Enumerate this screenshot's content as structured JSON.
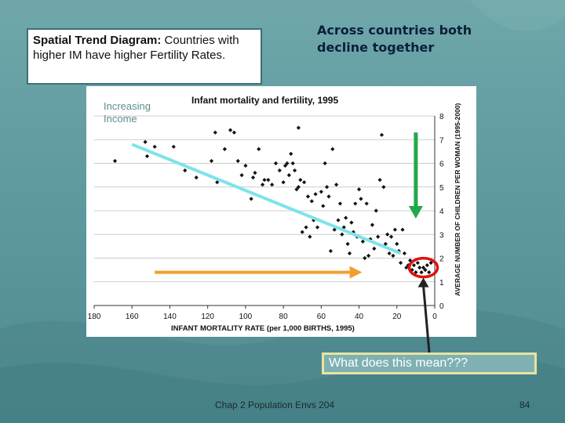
{
  "slide": {
    "callout_bold": "Spatial Trend Diagram:",
    "callout_rest": " Countries with higher IM have higher Fertility Rates.",
    "right_heading": "Across countries both decline together",
    "increasing_label": "Increasing Income",
    "question": "What does this mean???",
    "footer": "Chap 2 Population Envs 204",
    "page_number": "84"
  },
  "chart_data": {
    "type": "scatter",
    "title": "Infant mortality and fertility, 1995",
    "xlabel": "INFANT MORTALITY RATE (per 1,000 BIRTHS, 1995)",
    "ylabel": "AVERAGE NUMBER OF CHILDREN PER WOMAN (1995-2000)",
    "x_ticks": [
      "180",
      "160",
      "140",
      "120",
      "100",
      "80",
      "60",
      "40",
      "20",
      "0"
    ],
    "y_ticks": [
      "0",
      "1",
      "2",
      "3",
      "4",
      "5",
      "6",
      "7",
      "8"
    ],
    "xlim": [
      180,
      0
    ],
    "ylim": [
      0,
      8
    ],
    "x_reversed": true,
    "grid": "horizontal",
    "points": [
      [
        169,
        6.1
      ],
      [
        153,
        6.9
      ],
      [
        152,
        6.3
      ],
      [
        148,
        6.7
      ],
      [
        138,
        6.7
      ],
      [
        126,
        5.4
      ],
      [
        118,
        6.1
      ],
      [
        115,
        5.2
      ],
      [
        111,
        6.6
      ],
      [
        108,
        7.4
      ],
      [
        106,
        7.3
      ],
      [
        104,
        6.1
      ],
      [
        102,
        5.5
      ],
      [
        100,
        5.9
      ],
      [
        97,
        4.5
      ],
      [
        96,
        5.4
      ],
      [
        95,
        5.6
      ],
      [
        93,
        6.6
      ],
      [
        91,
        5.1
      ],
      [
        90,
        5.3
      ],
      [
        88,
        5.3
      ],
      [
        86,
        5.1
      ],
      [
        84,
        6.0
      ],
      [
        82,
        5.7
      ],
      [
        80,
        5.2
      ],
      [
        79,
        5.9
      ],
      [
        78,
        6.0
      ],
      [
        77,
        5.5
      ],
      [
        76,
        6.4
      ],
      [
        75,
        6.0
      ],
      [
        74,
        5.7
      ],
      [
        73,
        4.9
      ],
      [
        72,
        5.0
      ],
      [
        71,
        5.3
      ],
      [
        70,
        3.1
      ],
      [
        69,
        5.2
      ],
      [
        68,
        3.3
      ],
      [
        67,
        4.6
      ],
      [
        66,
        2.9
      ],
      [
        65,
        4.4
      ],
      [
        64,
        3.6
      ],
      [
        63,
        4.7
      ],
      [
        62,
        3.3
      ],
      [
        60,
        4.8
      ],
      [
        59,
        4.2
      ],
      [
        58,
        6.0
      ],
      [
        57,
        5.0
      ],
      [
        56,
        4.6
      ],
      [
        55,
        2.3
      ],
      [
        54,
        6.6
      ],
      [
        53,
        3.2
      ],
      [
        52,
        5.1
      ],
      [
        51,
        3.6
      ],
      [
        50,
        4.3
      ],
      [
        49,
        3.0
      ],
      [
        48,
        3.3
      ],
      [
        47,
        3.7
      ],
      [
        46,
        2.6
      ],
      [
        45,
        2.2
      ],
      [
        44,
        3.5
      ],
      [
        43,
        3.1
      ],
      [
        42,
        4.3
      ],
      [
        41,
        2.9
      ],
      [
        40,
        4.9
      ],
      [
        39,
        4.5
      ],
      [
        38,
        2.7
      ],
      [
        37,
        2.0
      ],
      [
        36,
        4.3
      ],
      [
        35,
        2.1
      ],
      [
        34,
        2.8
      ],
      [
        33,
        3.4
      ],
      [
        32,
        2.4
      ],
      [
        31,
        4.0
      ],
      [
        30,
        2.9
      ],
      [
        29,
        5.3
      ],
      [
        28,
        7.2
      ],
      [
        27,
        5.0
      ],
      [
        26,
        2.6
      ],
      [
        25,
        3.0
      ],
      [
        24,
        2.2
      ],
      [
        23,
        2.9
      ],
      [
        22,
        2.1
      ],
      [
        21,
        3.2
      ],
      [
        20,
        2.6
      ],
      [
        19,
        2.3
      ],
      [
        18,
        1.8
      ],
      [
        17,
        3.2
      ],
      [
        16,
        2.2
      ],
      [
        15,
        1.6
      ],
      [
        14,
        1.7
      ],
      [
        13,
        1.9
      ],
      [
        12,
        1.5
      ],
      [
        11,
        1.7
      ],
      [
        10,
        1.4
      ],
      [
        9,
        1.8
      ],
      [
        8,
        1.6
      ],
      [
        7,
        1.4
      ],
      [
        6,
        1.6
      ],
      [
        5,
        1.5
      ],
      [
        4,
        1.7
      ],
      [
        3,
        1.4
      ],
      [
        2,
        1.8
      ],
      [
        72,
        7.5
      ],
      [
        116,
        7.3
      ],
      [
        132,
        5.7
      ]
    ]
  },
  "annotations": {
    "cyan_line": [
      [
        160,
        6.8
      ],
      [
        18,
        2.2
      ]
    ],
    "green_arrow": [
      [
        10,
        7.3
      ],
      [
        10,
        3.8
      ]
    ],
    "orange_arrow": [
      [
        148,
        1.4
      ],
      [
        40,
        1.4
      ]
    ],
    "red_ellipse_center": [
      6,
      1.6
    ],
    "black_arrow_from_label": true,
    "colors": {
      "cyan": "#7fe3ea",
      "green": "#22a84a",
      "orange": "#f0a030",
      "red": "#e01010",
      "black": "#222222"
    }
  }
}
